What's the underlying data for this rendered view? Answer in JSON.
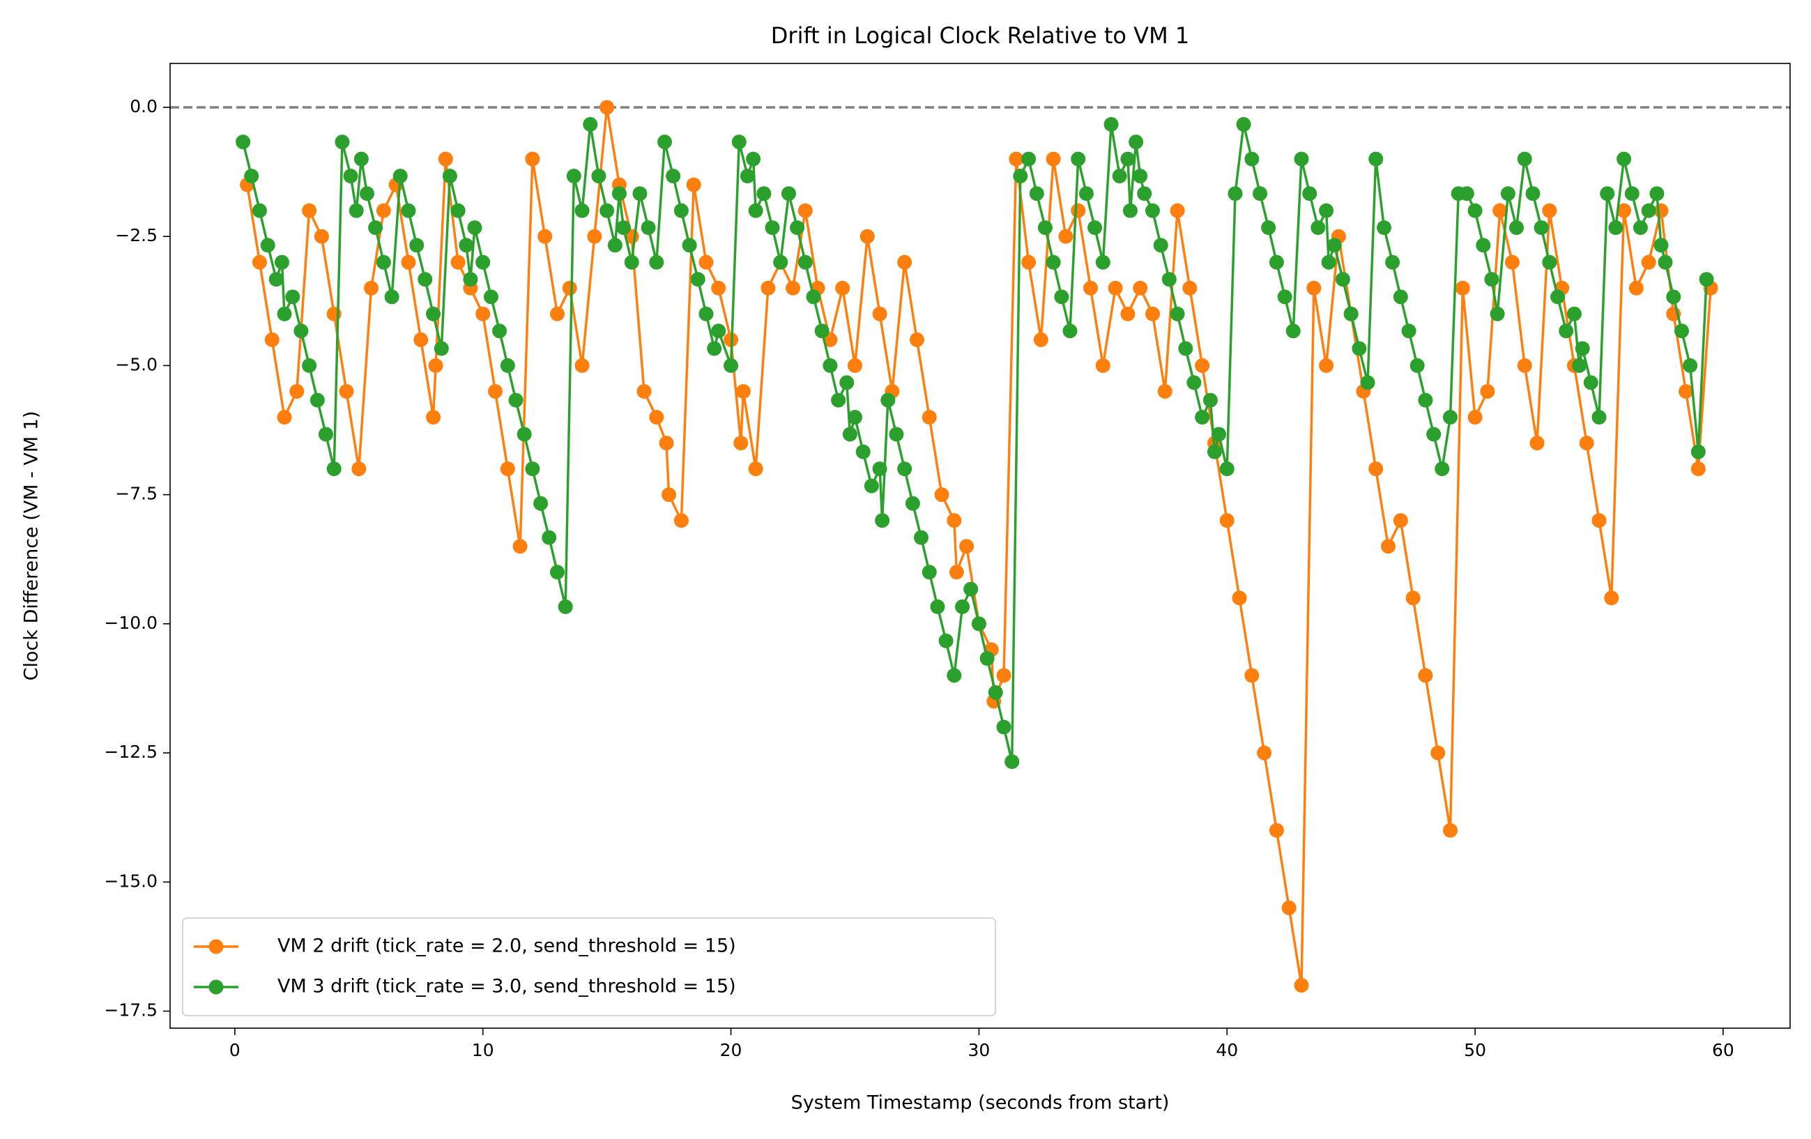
{
  "chart_data": {
    "type": "line",
    "title": "Drift in Logical Clock Relative to VM 1",
    "xlabel": "System Timestamp (seconds from start)",
    "ylabel": "Clock Difference (VM - VM 1)",
    "xlim": [
      -2.61,
      62.7
    ],
    "ylim": [
      -17.83,
      0.85
    ],
    "xticks": [
      0,
      10,
      20,
      30,
      40,
      50,
      60
    ],
    "yticks": [
      {
        "value": 0,
        "label": "0.0"
      },
      {
        "value": -2.5,
        "label": "−2.5"
      },
      {
        "value": -5,
        "label": "−5.0"
      },
      {
        "value": -7.5,
        "label": "−7.5"
      },
      {
        "value": -10,
        "label": "−10.0"
      },
      {
        "value": -12.5,
        "label": "−12.5"
      },
      {
        "value": -15,
        "label": "−15.0"
      },
      {
        "value": -17.5,
        "label": "−17.5"
      }
    ],
    "reference_line": {
      "y": 0,
      "color": "#808080",
      "dashed": true
    },
    "legend": "lower left",
    "series": [
      {
        "name": "VM 2 drift (tick_rate = 2.0, send_threshold = 15)",
        "color": "#ff7f0e",
        "x": [
          0.5,
          1,
          1.5,
          2,
          2.5,
          3,
          3.5,
          4,
          4.5,
          5,
          5.5,
          6,
          6.5,
          7,
          7.5,
          8,
          8.1,
          8.5,
          9,
          9.5,
          10,
          10.5,
          11,
          11.5,
          12,
          12.5,
          13,
          13.5,
          14,
          14.5,
          15,
          15.5,
          16,
          16.5,
          17,
          17.4,
          17.5,
          18,
          18.5,
          19,
          19.5,
          20,
          20.4,
          20.5,
          21,
          21.5,
          22,
          22.5,
          23,
          23.5,
          24,
          24.5,
          25,
          25.5,
          26,
          26.5,
          27,
          27.5,
          28,
          28.5,
          29,
          29.1,
          29.5,
          30,
          30.5,
          30.6,
          31,
          31.5,
          32,
          32.5,
          33,
          33.5,
          34,
          34.5,
          35,
          35.5,
          36,
          36.5,
          37,
          37.5,
          38,
          38.5,
          39,
          39.5,
          40,
          40.5,
          41,
          41.5,
          42,
          42.5,
          43,
          43.5,
          44,
          44.5,
          45,
          45.5,
          46,
          46.5,
          47,
          47.5,
          48,
          48.5,
          49,
          49.5,
          50,
          50.5,
          51,
          51.5,
          52,
          52.5,
          53,
          53.5,
          54,
          54.5,
          55,
          55.5,
          56,
          56.5,
          57,
          57.5,
          58,
          58.5,
          59,
          59.5
        ],
        "values": [
          -1.5,
          -3,
          -4.5,
          -6,
          -5.5,
          -2,
          -2.5,
          -4,
          -5.5,
          -7,
          -3.5,
          -2,
          -1.5,
          -3,
          -4.5,
          -6,
          -5,
          -1,
          -3,
          -3.5,
          -4,
          -5.5,
          -7,
          -8.5,
          -1,
          -2.5,
          -4,
          -3.5,
          -5,
          -2.5,
          0,
          -1.5,
          -2.5,
          -5.5,
          -6,
          -6.5,
          -7.5,
          -8,
          -1.5,
          -3,
          -3.5,
          -4.5,
          -6.5,
          -5.5,
          -7,
          -3.5,
          -3,
          -3.5,
          -2,
          -3.5,
          -4.5,
          -3.5,
          -5,
          -2.5,
          -4,
          -5.5,
          -3,
          -4.5,
          -6,
          -7.5,
          -8,
          -9,
          -8.5,
          -10,
          -10.5,
          -11.5,
          -11,
          -1,
          -3,
          -4.5,
          -1,
          -2.5,
          -2,
          -3.5,
          -5,
          -3.5,
          -4,
          -3.5,
          -4,
          -5.5,
          -2,
          -3.5,
          -5,
          -6.5,
          -8,
          -9.5,
          -11,
          -12.5,
          -14,
          -15.5,
          -17,
          -3.5,
          -5,
          -2.5,
          -4,
          -5.5,
          -7,
          -8.5,
          -8,
          -9.5,
          -11,
          -12.5,
          -14,
          -3.5,
          -6,
          -5.5,
          -2,
          -3,
          -5,
          -6.5,
          -2,
          -3.5,
          -5,
          -6.5,
          -8,
          -9.5,
          -2,
          -3.5,
          -3,
          -2,
          -4,
          -5.5,
          -7,
          -3.5
        ]
      },
      {
        "name": "VM 3 drift (tick_rate = 3.0, send_threshold = 15)",
        "color": "#2ca02c",
        "x": [
          0.33,
          0.67,
          1,
          1.33,
          1.67,
          1.9,
          2,
          2.33,
          2.67,
          3,
          3.33,
          3.67,
          4,
          4.33,
          4.67,
          4.9,
          5.1,
          5.33,
          5.67,
          6,
          6.33,
          6.67,
          7,
          7.33,
          7.67,
          8,
          8.33,
          8.67,
          9,
          9.33,
          9.5,
          9.67,
          10,
          10.33,
          10.67,
          11,
          11.33,
          11.67,
          12,
          12.33,
          12.67,
          13,
          13.33,
          13.67,
          14,
          14.33,
          14.67,
          15,
          15.33,
          15.5,
          15.67,
          16,
          16.33,
          16.67,
          17,
          17.33,
          17.67,
          18,
          18.33,
          18.67,
          19,
          19.33,
          19.5,
          20,
          20.33,
          20.67,
          20.9,
          21,
          21.33,
          21.67,
          22,
          22.33,
          22.67,
          23,
          23.33,
          23.67,
          24,
          24.33,
          24.67,
          24.8,
          25,
          25.33,
          25.67,
          26,
          26.1,
          26.33,
          26.67,
          27,
          27.33,
          27.67,
          28,
          28.33,
          28.67,
          29,
          29.33,
          29.67,
          30,
          30.33,
          30.67,
          31,
          31.33,
          31.67,
          32,
          32.33,
          32.67,
          33,
          33.33,
          33.67,
          34,
          34.33,
          34.67,
          35,
          35.33,
          35.67,
          36,
          36.1,
          36.33,
          36.5,
          36.67,
          37,
          37.33,
          37.67,
          38,
          38.33,
          38.67,
          39,
          39.33,
          39.5,
          39.67,
          40,
          40.33,
          40.67,
          41,
          41.33,
          41.67,
          42,
          42.33,
          42.67,
          43,
          43.33,
          43.67,
          44,
          44.1,
          44.33,
          44.67,
          45,
          45.33,
          45.67,
          46,
          46.33,
          46.67,
          47,
          47.33,
          47.67,
          48,
          48.33,
          48.67,
          49,
          49.33,
          49.67,
          50,
          50.33,
          50.67,
          50.9,
          51.33,
          51.67,
          52,
          52.33,
          52.67,
          53,
          53.33,
          53.67,
          54,
          54.2,
          54.33,
          54.67,
          55,
          55.33,
          55.67,
          56,
          56.33,
          56.67,
          57,
          57.33,
          57.5,
          57.67,
          58,
          58.33,
          58.67,
          59,
          59.33
        ],
        "values": [
          -0.67,
          -1.33,
          -2,
          -2.67,
          -3.33,
          -3,
          -4,
          -3.67,
          -4.33,
          -5,
          -5.67,
          -6.33,
          -7,
          -0.67,
          -1.33,
          -2,
          -1,
          -1.67,
          -2.33,
          -3,
          -3.67,
          -1.33,
          -2,
          -2.67,
          -3.33,
          -4,
          -4.67,
          -1.33,
          -2,
          -2.67,
          -3.33,
          -2.33,
          -3,
          -3.67,
          -4.33,
          -5,
          -5.67,
          -6.33,
          -7,
          -7.67,
          -8.33,
          -9,
          -9.67,
          -1.33,
          -2,
          -0.33,
          -1.33,
          -2,
          -2.67,
          -1.67,
          -2.33,
          -3,
          -1.67,
          -2.33,
          -3,
          -0.67,
          -1.33,
          -2,
          -2.67,
          -3.33,
          -4,
          -4.67,
          -4.33,
          -5,
          -0.67,
          -1.33,
          -1,
          -2,
          -1.67,
          -2.33,
          -3,
          -1.67,
          -2.33,
          -3,
          -3.67,
          -4.33,
          -5,
          -5.67,
          -5.33,
          -6.33,
          -6,
          -6.67,
          -7.33,
          -7,
          -8,
          -5.67,
          -6.33,
          -7,
          -7.67,
          -8.33,
          -9,
          -9.67,
          -10.33,
          -11,
          -9.67,
          -9.33,
          -10,
          -10.67,
          -11.33,
          -12,
          -12.67,
          -1.33,
          -1,
          -1.67,
          -2.33,
          -3,
          -3.67,
          -4.33,
          -1,
          -1.67,
          -2.33,
          -3,
          -0.33,
          -1.33,
          -1,
          -2,
          -0.67,
          -1.33,
          -1.67,
          -2,
          -2.67,
          -3.33,
          -4,
          -4.67,
          -5.33,
          -6,
          -5.67,
          -6.67,
          -6.33,
          -7,
          -1.67,
          -0.33,
          -1,
          -1.67,
          -2.33,
          -3,
          -3.67,
          -4.33,
          -1,
          -1.67,
          -2.33,
          -2,
          -3,
          -2.67,
          -3.33,
          -4,
          -4.67,
          -5.33,
          -1,
          -2.33,
          -3,
          -3.67,
          -4.33,
          -5,
          -5.67,
          -6.33,
          -7,
          -6,
          -1.67,
          -1.67,
          -2,
          -2.67,
          -3.33,
          -4,
          -1.67,
          -2.33,
          -1,
          -1.67,
          -2.33,
          -3,
          -3.67,
          -4.33,
          -4,
          -5,
          -4.67,
          -5.33,
          -6,
          -1.67,
          -2.33,
          -1,
          -1.67,
          -2.33,
          -2,
          -1.67,
          -2.67,
          -3,
          -3.67,
          -4.33,
          -5,
          -6.67,
          -3.33
        ]
      }
    ]
  }
}
